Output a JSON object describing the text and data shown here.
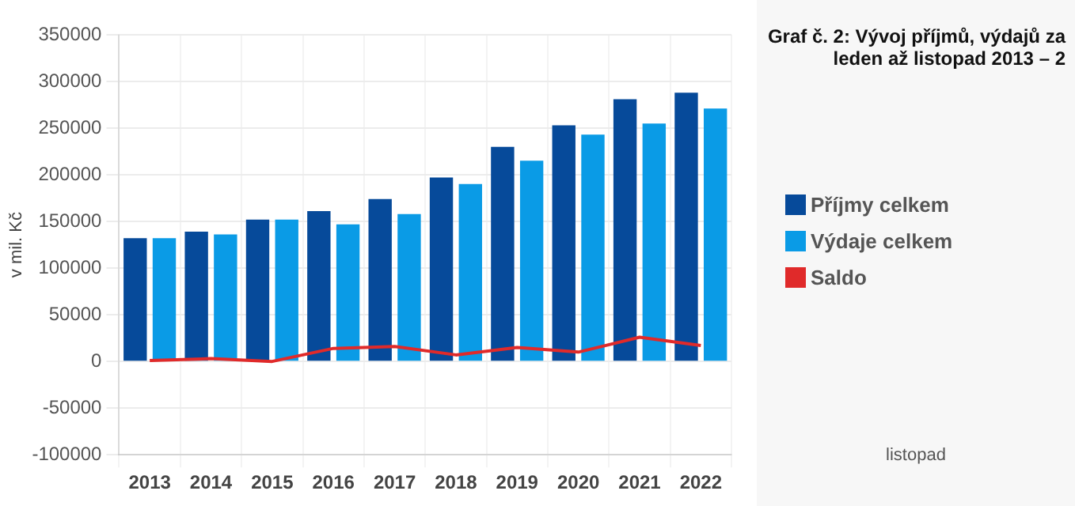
{
  "chart_data": {
    "type": "bar",
    "title": "Graf č. 2: Vývoj příjmů, výdajů za leden až listopad 2013 – 2",
    "ylabel": "v mil. Kč",
    "categories": [
      "2013",
      "2014",
      "2015",
      "2016",
      "2017",
      "2018",
      "2019",
      "2020",
      "2021",
      "2022"
    ],
    "series": [
      {
        "name": "Příjmy celkem",
        "color": "#064a9a",
        "values": [
          132000,
          139000,
          152000,
          161000,
          174000,
          197000,
          230000,
          253000,
          281000,
          288000
        ]
      },
      {
        "name": "Výdaje celkem",
        "color": "#0a9be6",
        "values": [
          132000,
          136000,
          152000,
          147000,
          158000,
          190000,
          215000,
          243000,
          255000,
          271000
        ]
      },
      {
        "name": "Saldo",
        "type": "line",
        "color": "#e02a2a",
        "values": [
          1000,
          3000,
          0,
          14000,
          16000,
          7000,
          15000,
          10000,
          26000,
          17000
        ]
      }
    ],
    "ylim": [
      -100000,
      350000
    ],
    "yticks": [
      -100000,
      -50000,
      0,
      50000,
      100000,
      150000,
      200000,
      250000,
      300000,
      350000
    ],
    "grid": true,
    "legend": "right",
    "annotations": [
      "listopad"
    ]
  }
}
